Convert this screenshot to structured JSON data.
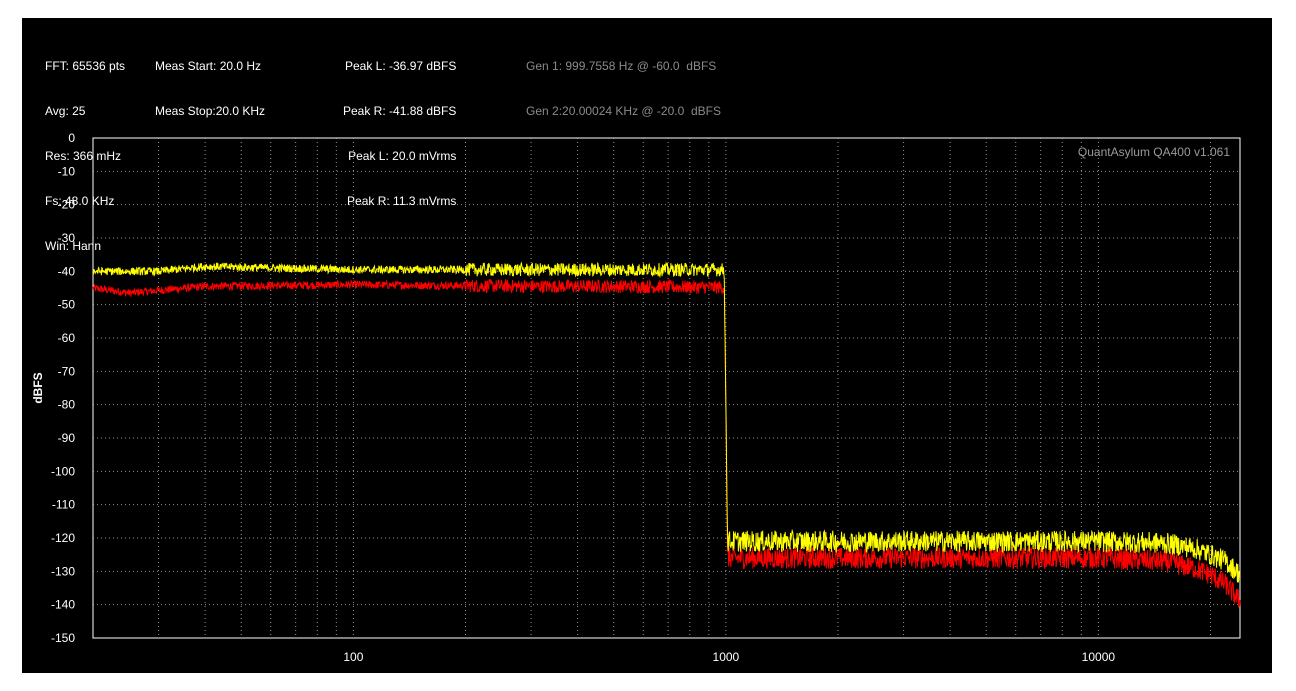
{
  "info": {
    "fft": [
      "FFT: 65536 pts",
      "Avg: 25",
      "Res: 366 mHz",
      "Fs: 48.0 KHz",
      "Win: Hann"
    ],
    "meas": [
      "Meas Start: 20.0 Hz",
      "Meas Stop:20.0 KHz"
    ],
    "peak": [
      "Peak L: -36.97 dBFS",
      "Peak R: -41.88 dBFS",
      "Peak L: 20.0 mVrms",
      "Peak R: 11.3 mVrms"
    ],
    "gen": [
      "Gen 1: 999.7558 Hz @ -60.0  dBFS",
      "Gen 2:20.00024 KHz @ -20.0  dBFS"
    ]
  },
  "watermark": "QuantAsylum QA400 v1.061",
  "colors": {
    "panel": "#000000",
    "grid": "#bbbbbb",
    "text": "#ffffff",
    "gen_text": "#8a8a8a",
    "left": "#ffff00",
    "right": "#ff0000"
  },
  "chart_data": {
    "type": "line",
    "xscale": "log",
    "xlim": [
      20,
      24000
    ],
    "ylim": [
      -150,
      0
    ],
    "ylabel": "dBFS",
    "xticks": [
      100,
      1000,
      10000
    ],
    "yticks": [
      0,
      -10,
      -20,
      -30,
      -40,
      -50,
      -60,
      -70,
      -80,
      -90,
      -100,
      -110,
      -120,
      -130,
      -140,
      -150
    ],
    "grid": true,
    "series": [
      {
        "color": "#ff0000",
        "points": [
          [
            20,
            -45
          ],
          [
            25,
            -46.5
          ],
          [
            40,
            -44.5
          ],
          [
            100,
            -44
          ],
          [
            300,
            -44.5
          ],
          [
            500,
            -44.5
          ],
          [
            990,
            -44.8
          ],
          [
            1000,
            -80
          ],
          [
            1010,
            -126
          ],
          [
            3000,
            -126
          ],
          [
            10000,
            -126
          ],
          [
            15000,
            -127
          ],
          [
            18000,
            -129
          ],
          [
            20000,
            -131
          ],
          [
            22000,
            -134
          ],
          [
            24000,
            -139
          ]
        ]
      },
      {
        "color": "#ffff00",
        "points": [
          [
            20,
            -40
          ],
          [
            30,
            -40
          ],
          [
            40,
            -38.5
          ],
          [
            100,
            -39.5
          ],
          [
            300,
            -39.5
          ],
          [
            500,
            -39.5
          ],
          [
            990,
            -39.5
          ],
          [
            1000,
            -80
          ],
          [
            1010,
            -121
          ],
          [
            3000,
            -121
          ],
          [
            10000,
            -121
          ],
          [
            15000,
            -121.5
          ],
          [
            18000,
            -123
          ],
          [
            20000,
            -125
          ],
          [
            22000,
            -127
          ],
          [
            24000,
            -131
          ]
        ]
      }
    ]
  }
}
